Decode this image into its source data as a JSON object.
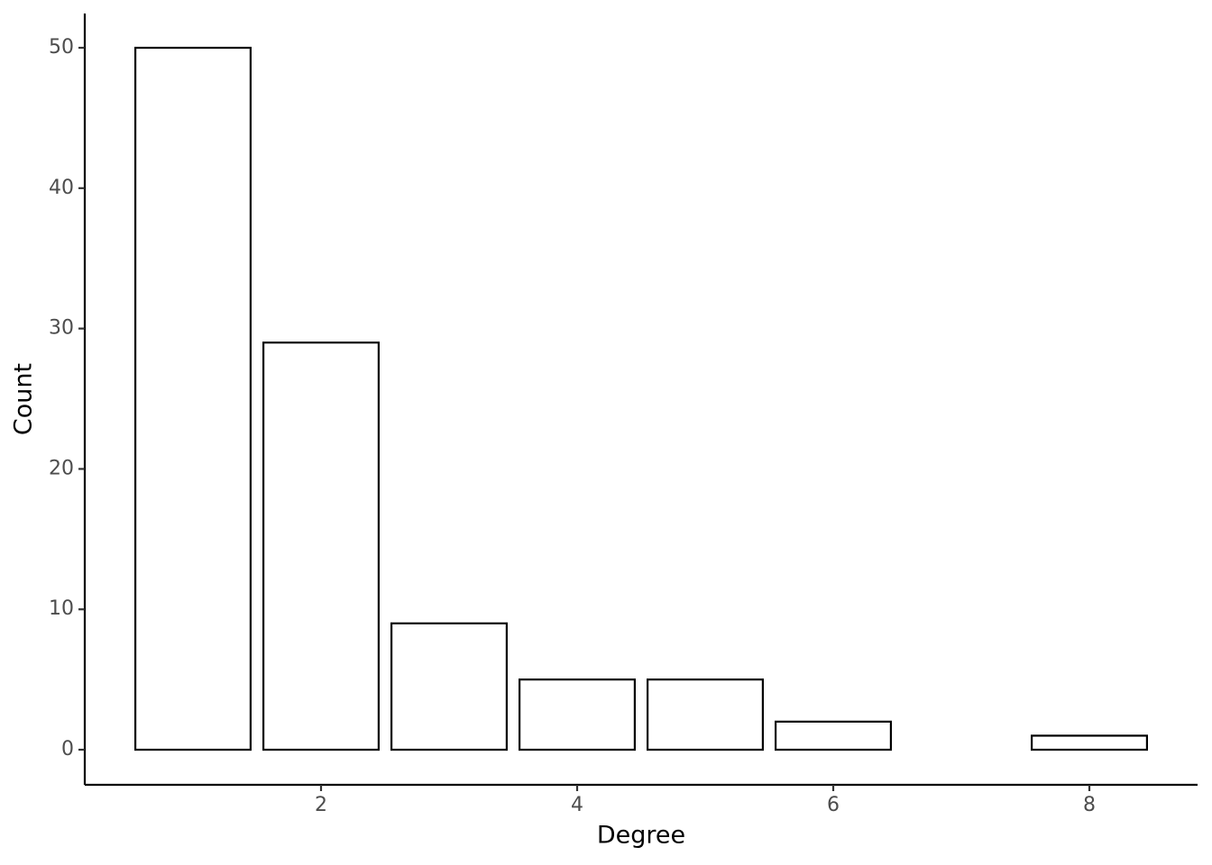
{
  "chart_data": {
    "type": "bar",
    "x": [
      1,
      2,
      3,
      4,
      5,
      6,
      8
    ],
    "values": [
      50,
      29,
      9,
      5,
      5,
      2,
      1
    ],
    "xlabel": "Degree",
    "ylabel": "Count",
    "xlim": [
      0.155,
      8.845
    ],
    "ylim": [
      -2.5,
      52.44
    ],
    "xticks": [
      2,
      4,
      6,
      8
    ],
    "yticks": [
      0,
      10,
      20,
      30,
      40,
      50
    ],
    "color": "#ffffff",
    "edgecolor": "#000000",
    "grid": false
  }
}
